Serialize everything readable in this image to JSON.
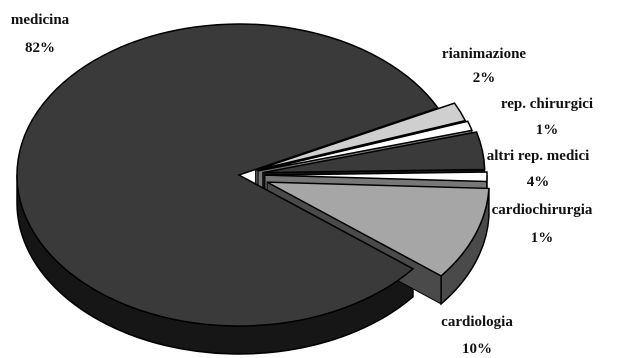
{
  "chart_data": {
    "type": "pie",
    "style": "3d-exploded",
    "slices": [
      {
        "label": "medicina",
        "value": 82,
        "value_label": "82%",
        "color": "#3a3a3a",
        "side": "#161616"
      },
      {
        "label": "rianimazione",
        "value": 2,
        "value_label": "2%",
        "color": "#cfcfcf",
        "side": "#555555"
      },
      {
        "label": "rep. chirurgici",
        "value": 1,
        "value_label": "1%",
        "color": "#ffffff",
        "side": "#777777"
      },
      {
        "label": "altri rep. medici",
        "value": 4,
        "value_label": "4%",
        "color": "#3a3a3a",
        "side": "#161616"
      },
      {
        "label": "cardiochirurgia",
        "value": 1,
        "value_label": "1%",
        "color": "#ffffff",
        "side": "#777777"
      },
      {
        "label": "cardiologia",
        "value": 10,
        "value_label": "10%",
        "color": "#a6a6a6",
        "side": "#4a4a4a"
      }
    ]
  }
}
